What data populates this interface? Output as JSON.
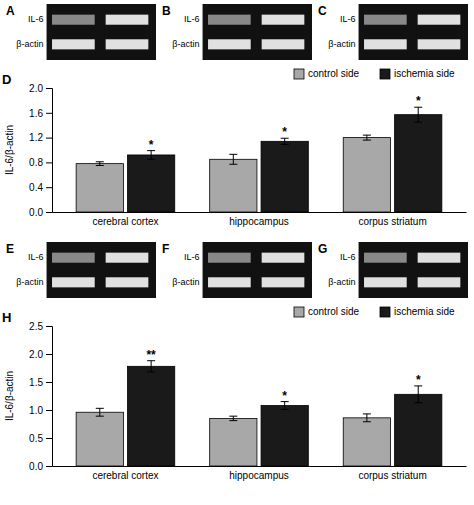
{
  "chart_data": [
    {
      "type": "gel",
      "title": "A",
      "categories": [
        "IL-6",
        "β-actin"
      ],
      "colors": [
        "#888888",
        "#e0e0e0",
        "#e0e0e0",
        "#e0e0e0"
      ]
    },
    {
      "type": "gel",
      "title": "B",
      "categories": [
        "IL-6",
        "β-actin"
      ],
      "colors": [
        "#888888",
        "#e0e0e0",
        "#e0e0e0",
        "#e0e0e0"
      ]
    },
    {
      "type": "gel",
      "title": "C",
      "categories": [
        "IL-6",
        "β-actin"
      ],
      "colors": [
        "#888888",
        "#e0e0e0",
        "#e0e0e0",
        "#e0e0e0"
      ]
    },
    {
      "type": "bar",
      "title": "D",
      "ylabel": "IL-6/β-actin",
      "categories": [
        "cerebral cortex",
        "hippocampus",
        "corpus striatum"
      ],
      "series": [
        {
          "name": "control side",
          "color": "#a8a8a8",
          "values": [
            0.78,
            0.85,
            1.2
          ],
          "errors": [
            0.03,
            0.08,
            0.04
          ]
        },
        {
          "name": "ischemia side",
          "color": "#1a1a1a",
          "values": [
            0.92,
            1.14,
            1.57
          ],
          "errors": [
            0.07,
            0.05,
            0.12
          ]
        }
      ],
      "annotations": [
        "*",
        "*",
        "*"
      ],
      "ylim": [
        0,
        2.0
      ],
      "yticks": [
        {
          "value": 0,
          "label": "0.0"
        },
        0.4,
        0.8,
        1.2,
        1.6,
        {
          "value": 2.0,
          "label": "2.0"
        }
      ],
      "legend": "upper right",
      "grid": false
    },
    {
      "type": "gel",
      "title": "E",
      "categories": [
        "IL-6",
        "β-actin"
      ],
      "colors": [
        "#888888",
        "#e0e0e0",
        "#e0e0e0",
        "#e0e0e0"
      ]
    },
    {
      "type": "gel",
      "title": "F",
      "categories": [
        "IL-6",
        "β-actin"
      ],
      "colors": [
        "#888888",
        "#e0e0e0",
        "#e0e0e0",
        "#e0e0e0"
      ]
    },
    {
      "type": "gel",
      "title": "G",
      "categories": [
        "IL-6",
        "β-actin"
      ],
      "colors": [
        "#888888",
        "#e0e0e0",
        "#e0e0e0",
        "#e0e0e0"
      ]
    },
    {
      "type": "bar",
      "title": "H",
      "ylabel": "IL-6/β-actin",
      "categories": [
        "cerebral cortex",
        "hippocampus",
        "corpus striatum"
      ],
      "series": [
        {
          "name": "control side",
          "color": "#a8a8a8",
          "values": [
            0.96,
            0.85,
            0.86
          ],
          "errors": [
            0.07,
            0.04,
            0.07
          ]
        },
        {
          "name": "ischemia side",
          "color": "#1a1a1a",
          "values": [
            1.78,
            1.08,
            1.28
          ],
          "errors": [
            0.1,
            0.07,
            0.15
          ]
        }
      ],
      "annotations": [
        "**",
        "*",
        "*"
      ],
      "ylim": [
        0,
        2.5
      ],
      "yticks": [
        {
          "value": 0,
          "label": "0.0"
        },
        0.5,
        {
          "value": 1.0,
          "label": "1.0"
        },
        1.5,
        {
          "value": 2.0,
          "label": "2.0"
        },
        2.5
      ],
      "legend": "upper right",
      "grid": false
    }
  ]
}
